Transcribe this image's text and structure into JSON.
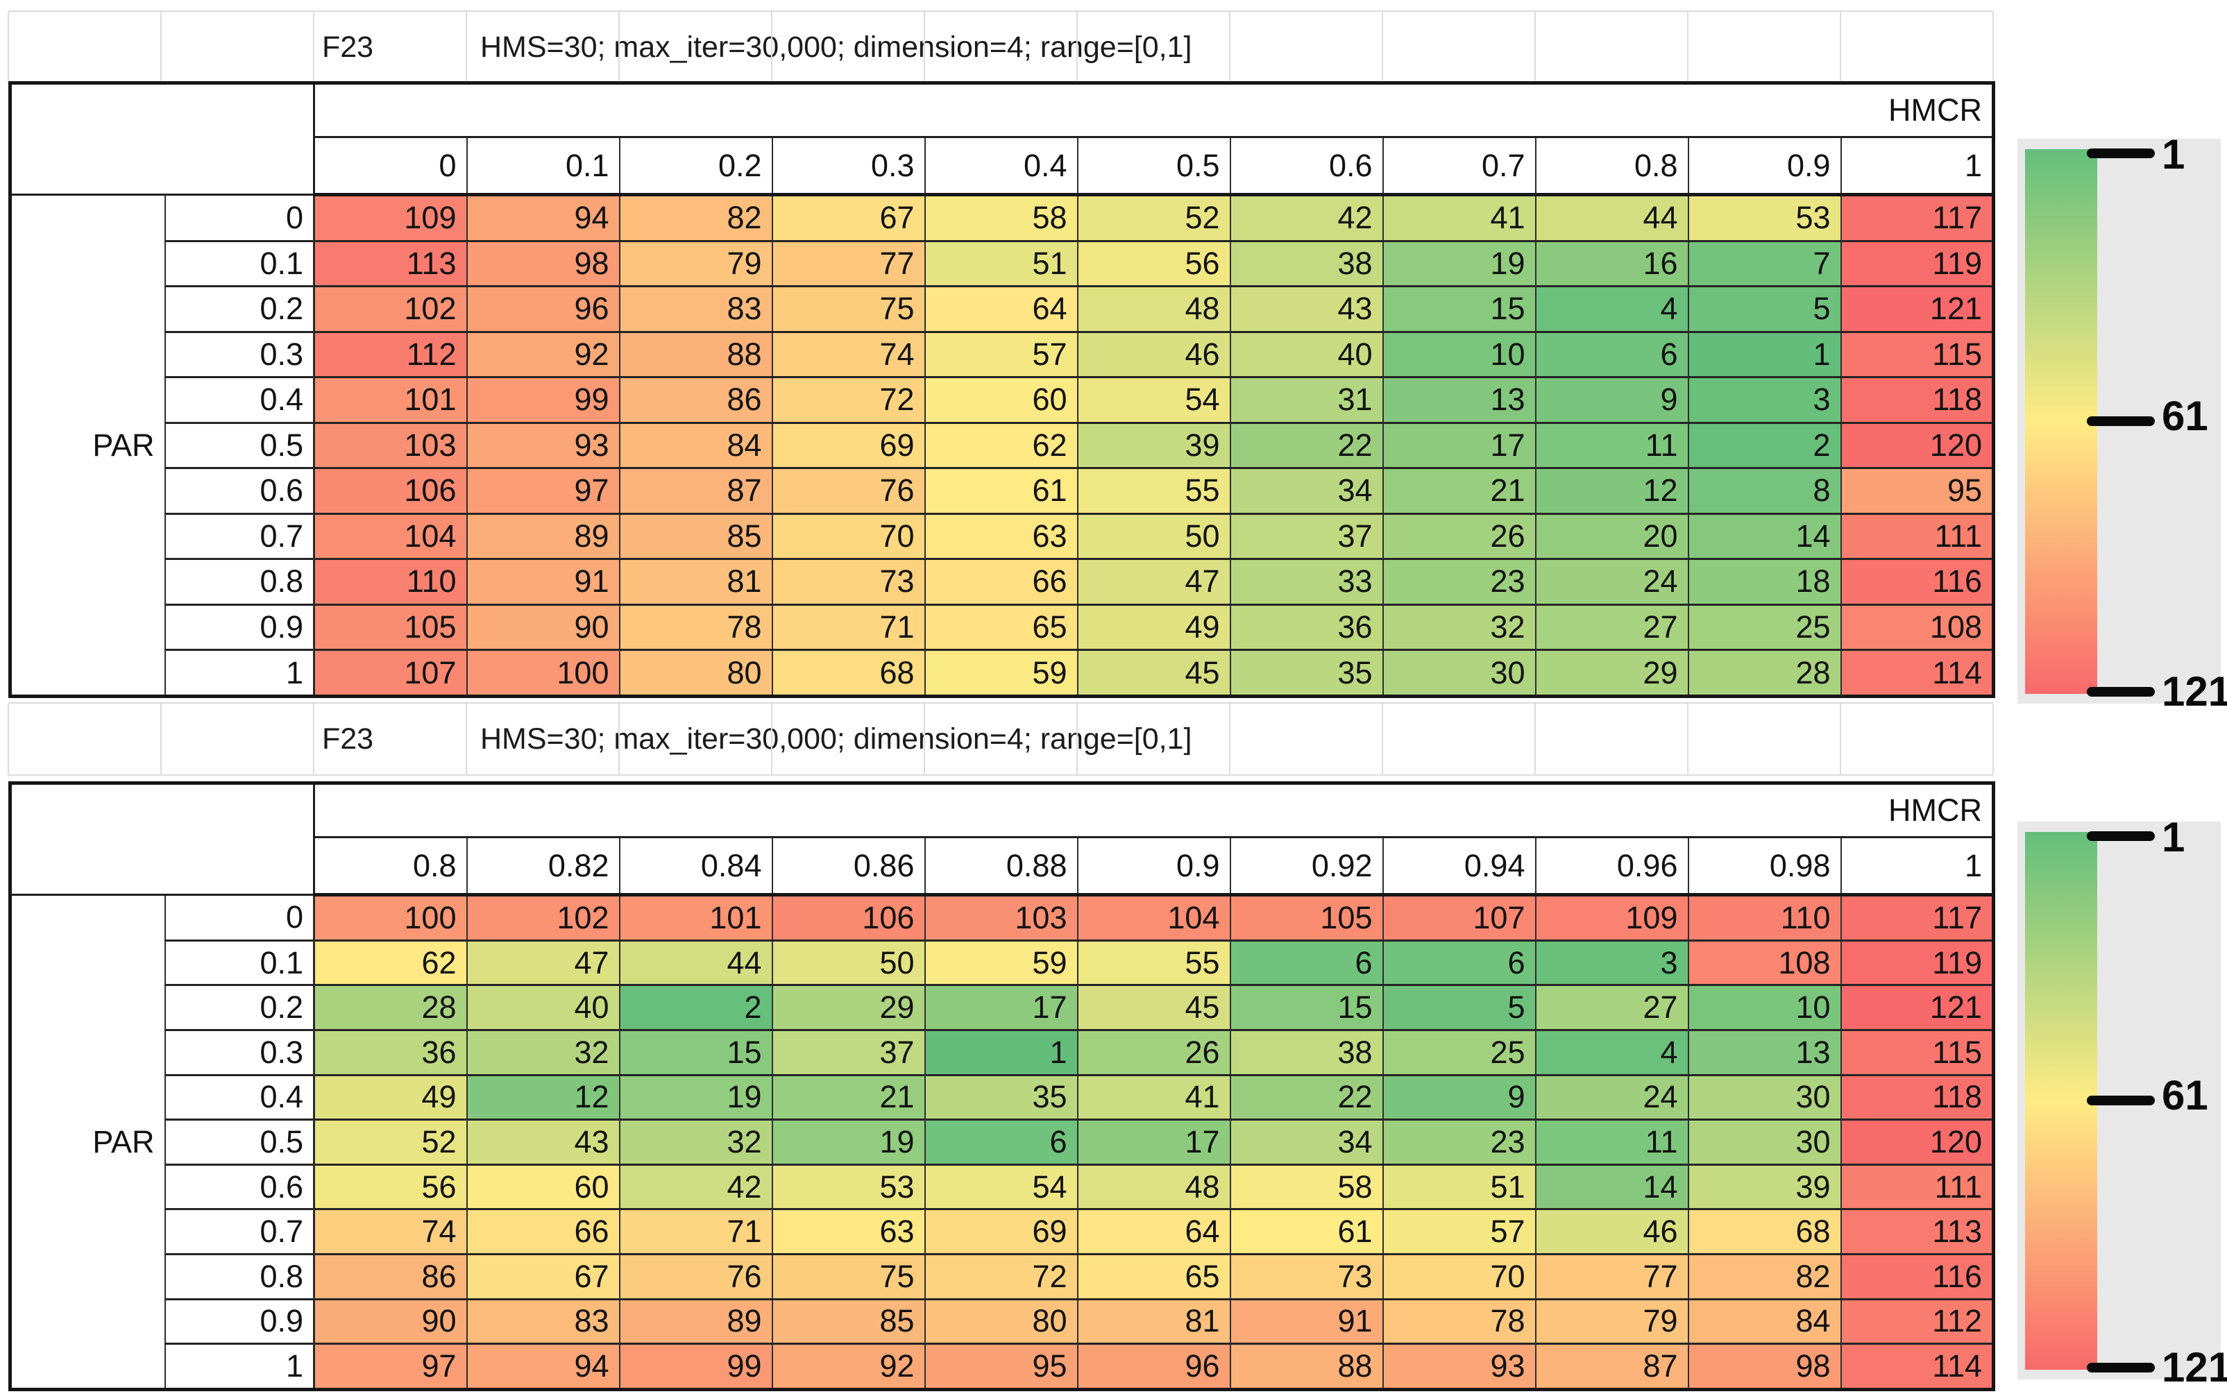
{
  "colors": {
    "scale_min_green": "#63BE7B",
    "scale_mid_yellow": "#FFEB84",
    "scale_max_red": "#F8696B",
    "faint_gridline": "#dcdcdc",
    "table_border": "#161616",
    "legend_panel": "#e8e8e8"
  },
  "chart_data": [
    {
      "type": "heatmap",
      "title": "F23",
      "subtitle": "HMS=30; max_iter=30,000; dimension=4; range=[0,1]",
      "x_axis_label": "HMCR",
      "y_axis_label": "PAR",
      "x": [
        "0",
        "0.1",
        "0.2",
        "0.3",
        "0.4",
        "0.5",
        "0.6",
        "0.7",
        "0.8",
        "0.9",
        "1"
      ],
      "y": [
        "0",
        "0.1",
        "0.2",
        "0.3",
        "0.4",
        "0.5",
        "0.6",
        "0.7",
        "0.8",
        "0.9",
        "1"
      ],
      "values": [
        [
          109,
          94,
          82,
          67,
          58,
          52,
          42,
          41,
          44,
          53,
          117
        ],
        [
          113,
          98,
          79,
          77,
          51,
          56,
          38,
          19,
          16,
          7,
          119
        ],
        [
          102,
          96,
          83,
          75,
          64,
          48,
          43,
          15,
          4,
          5,
          121
        ],
        [
          112,
          92,
          88,
          74,
          57,
          46,
          40,
          10,
          6,
          1,
          115
        ],
        [
          101,
          99,
          86,
          72,
          60,
          54,
          31,
          13,
          9,
          3,
          118
        ],
        [
          103,
          93,
          84,
          69,
          62,
          39,
          22,
          17,
          11,
          2,
          120
        ],
        [
          106,
          97,
          87,
          76,
          61,
          55,
          34,
          21,
          12,
          8,
          95
        ],
        [
          104,
          89,
          85,
          70,
          63,
          50,
          37,
          26,
          20,
          14,
          111
        ],
        [
          110,
          91,
          81,
          73,
          66,
          47,
          33,
          23,
          24,
          18,
          116
        ],
        [
          105,
          90,
          78,
          71,
          65,
          49,
          36,
          32,
          27,
          25,
          108
        ],
        [
          107,
          100,
          80,
          68,
          59,
          45,
          35,
          30,
          29,
          28,
          114
        ]
      ],
      "colorscale": {
        "min": {
          "value": 1,
          "color": "#63BE7B"
        },
        "mid": {
          "value": 61,
          "color": "#FFEB84"
        },
        "max": {
          "value": 121,
          "color": "#F8696B"
        }
      },
      "legend_ticks": [
        "1",
        "61",
        "121"
      ],
      "legend_position": "right"
    },
    {
      "type": "heatmap",
      "title": "F23",
      "subtitle": "HMS=30; max_iter=30,000; dimension=4; range=[0,1]",
      "x_axis_label": "HMCR",
      "y_axis_label": "PAR",
      "x": [
        "0.8",
        "0.82",
        "0.84",
        "0.86",
        "0.88",
        "0.9",
        "0.92",
        "0.94",
        "0.96",
        "0.98",
        "1"
      ],
      "y": [
        "0",
        "0.1",
        "0.2",
        "0.3",
        "0.4",
        "0.5",
        "0.6",
        "0.7",
        "0.8",
        "0.9",
        "1"
      ],
      "values": [
        [
          100,
          102,
          101,
          106,
          103,
          104,
          105,
          107,
          109,
          110,
          117
        ],
        [
          62,
          47,
          44,
          50,
          59,
          55,
          6,
          6,
          3,
          108,
          119
        ],
        [
          28,
          40,
          2,
          29,
          17,
          45,
          15,
          5,
          27,
          10,
          121
        ],
        [
          36,
          32,
          15,
          37,
          1,
          26,
          38,
          25,
          4,
          13,
          115
        ],
        [
          49,
          12,
          19,
          21,
          35,
          41,
          22,
          9,
          24,
          30,
          118
        ],
        [
          52,
          43,
          32,
          19,
          6,
          17,
          34,
          23,
          11,
          30,
          120
        ],
        [
          56,
          60,
          42,
          53,
          54,
          48,
          58,
          51,
          14,
          39,
          111
        ],
        [
          74,
          66,
          71,
          63,
          69,
          64,
          61,
          57,
          46,
          68,
          113
        ],
        [
          86,
          67,
          76,
          75,
          72,
          65,
          73,
          70,
          77,
          82,
          116
        ],
        [
          90,
          83,
          89,
          85,
          80,
          81,
          91,
          78,
          79,
          84,
          112
        ],
        [
          97,
          94,
          99,
          92,
          95,
          96,
          88,
          93,
          87,
          98,
          114
        ]
      ],
      "colorscale": {
        "min": {
          "value": 1,
          "color": "#63BE7B"
        },
        "mid": {
          "value": 61,
          "color": "#FFEB84"
        },
        "max": {
          "value": 121,
          "color": "#F8696B"
        }
      },
      "legend_ticks": [
        "1",
        "61",
        "121"
      ],
      "legend_position": "right"
    }
  ]
}
